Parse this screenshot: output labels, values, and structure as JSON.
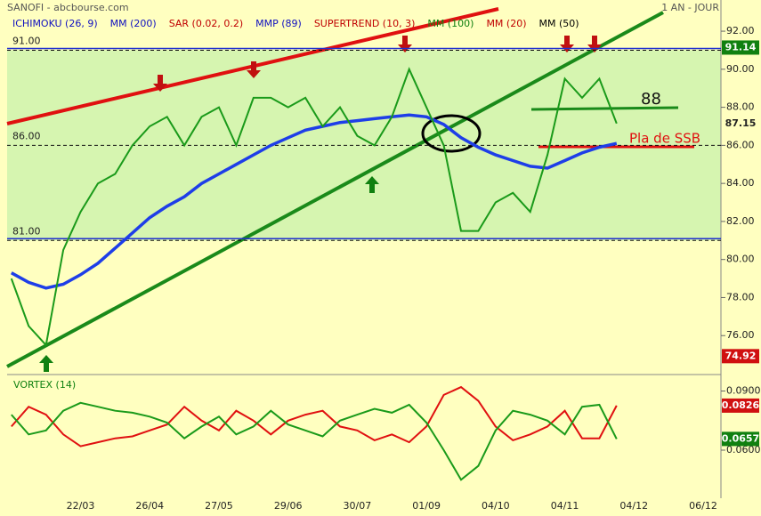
{
  "header": {
    "title": "SANOFI - abcbourse.com",
    "period": "1 AN - JOUR"
  },
  "chart_data": [
    {
      "type": "line",
      "legend": [
        {
          "name": "ICHIMOKU (26, 9)",
          "color": "#1010c0"
        },
        {
          "name": "MM (200)",
          "color": "#1010c0"
        },
        {
          "name": "SAR (0.02, 0.2)",
          "color": "#c00000"
        },
        {
          "name": "MMP (89)",
          "color": "#1010c0"
        },
        {
          "name": "SUPERTREND (10, 3)",
          "color": "#c00000"
        },
        {
          "name": "MM (100)",
          "color": "#108010"
        },
        {
          "name": "MM (20)",
          "color": "#c00000"
        },
        {
          "name": "MM (50)",
          "color": "#000000"
        }
      ],
      "values": [
        79.0,
        76.5,
        75.5,
        80.5,
        82.5,
        84.0,
        84.5,
        86.0,
        87.0,
        87.5,
        86.0,
        87.5,
        88.0,
        86.0,
        88.5,
        88.5,
        88.0,
        88.5,
        87.0,
        88.0,
        86.5,
        86.0,
        87.5,
        90.0,
        88.0,
        86.0,
        81.5,
        81.5,
        83.0,
        83.5,
        82.5,
        85.5,
        89.5,
        88.5,
        89.5,
        87.15,
        null,
        null,
        null,
        null,
        null
      ],
      "color": "#1a9a1a",
      "series": [
        {
          "color": "#1e3ee8",
          "values": [
            79.3,
            78.8,
            78.5,
            78.7,
            79.2,
            79.8,
            80.6,
            81.4,
            82.2,
            82.8,
            83.3,
            84.0,
            84.5,
            85.0,
            85.5,
            86.0,
            86.4,
            86.8,
            87.0,
            87.2,
            87.3,
            87.4,
            87.5,
            87.6,
            87.5,
            87.1,
            86.4,
            85.9,
            85.5,
            85.2,
            84.9,
            84.8,
            85.2,
            85.6,
            85.9,
            86.1,
            null,
            null,
            null,
            null,
            null
          ]
        }
      ],
      "ylim": [
        74.0,
        93.64
      ],
      "yticks": [
        {
          "value": 92,
          "label": "92.00"
        },
        {
          "value": 90,
          "label": "90.00"
        },
        {
          "value": 88,
          "label": "88.00"
        },
        {
          "value": 86,
          "label": "86.00"
        },
        {
          "value": 84,
          "label": "84.00"
        },
        {
          "value": 82,
          "label": "82.00"
        },
        {
          "value": 80,
          "label": "80.00"
        },
        {
          "value": 78,
          "label": "78.00"
        },
        {
          "value": 76,
          "label": "76.00"
        }
      ],
      "reference_lines": [
        {
          "value": 91,
          "label": "91.00"
        },
        {
          "value": 86,
          "label": "86.00"
        },
        {
          "value": 81,
          "label": "81.00"
        }
      ],
      "price_markers": [
        {
          "value": 91.14,
          "label": "91.14",
          "color": "#108010"
        },
        {
          "value": 87.15,
          "label": "87.15",
          "color": "#ffffc0"
        },
        {
          "value": 74.92,
          "label": "74.92",
          "color": "#d01010"
        }
      ],
      "annotations": [
        {
          "text": "88"
        },
        {
          "text": "Pla de SSB"
        }
      ]
    },
    {
      "type": "line",
      "title": "VORTEX (14)",
      "categories": [
        null,
        null,
        null,
        null,
        "22/03",
        null,
        null,
        null,
        "26/04",
        null,
        null,
        null,
        "27/05",
        null,
        null,
        null,
        "29/06",
        null,
        null,
        null,
        "30/07",
        null,
        null,
        null,
        "01/09",
        null,
        null,
        null,
        "04/10",
        null,
        null,
        null,
        "04/11",
        null,
        null,
        null,
        "04/12",
        null,
        null,
        null,
        "06/12"
      ],
      "series": [
        {
          "color": "#e01010",
          "values": [
            0.072,
            0.082,
            0.078,
            0.068,
            0.062,
            0.064,
            0.066,
            0.067,
            0.07,
            0.073,
            0.082,
            0.075,
            0.07,
            0.08,
            0.075,
            0.068,
            0.075,
            0.078,
            0.08,
            0.072,
            0.07,
            0.065,
            0.068,
            0.064,
            0.072,
            0.088,
            0.092,
            0.085,
            0.072,
            0.065,
            0.068,
            0.072,
            0.08,
            0.066,
            0.066,
            0.0826,
            null,
            null,
            null,
            null,
            null
          ]
        },
        {
          "color": "#1a9a1a",
          "values": [
            0.078,
            0.068,
            0.07,
            0.08,
            0.084,
            0.082,
            0.08,
            0.079,
            0.077,
            0.074,
            0.066,
            0.072,
            0.077,
            0.068,
            0.072,
            0.08,
            0.073,
            0.07,
            0.067,
            0.075,
            0.078,
            0.081,
            0.079,
            0.083,
            0.074,
            0.06,
            0.045,
            0.052,
            0.07,
            0.08,
            0.078,
            0.075,
            0.068,
            0.082,
            0.083,
            0.0657,
            null,
            null,
            null,
            null,
            null
          ]
        }
      ],
      "ylim": [
        0.0379,
        0.0979
      ],
      "yticks": [
        {
          "value": 0.09,
          "label": "0.0900"
        },
        {
          "value": 0.06,
          "label": "0.0600"
        }
      ],
      "price_markers": [
        {
          "value": 0.0826,
          "label": "0.0826",
          "color": "#d01010"
        },
        {
          "value": 0.0657,
          "label": "0.0657",
          "color": "#108010"
        }
      ]
    }
  ]
}
